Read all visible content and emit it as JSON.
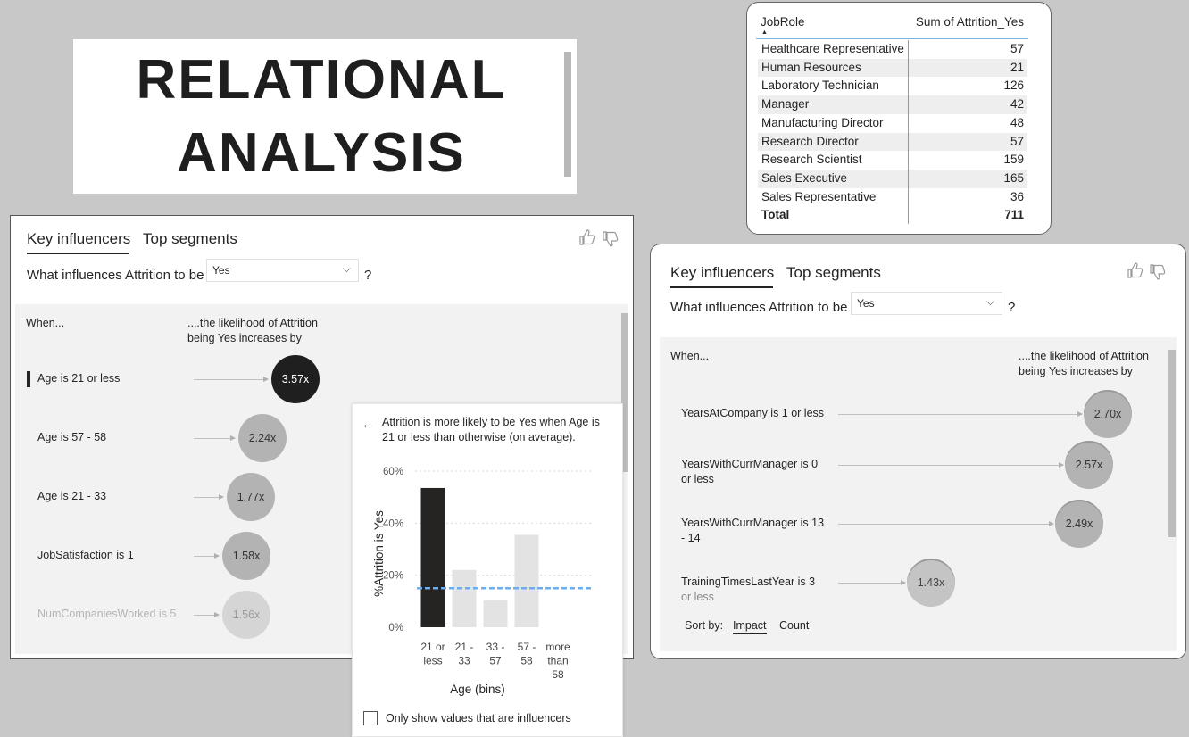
{
  "title": {
    "line1": "RELATIONAL",
    "line2": "ANALYSIS"
  },
  "table": {
    "col_role": "JobRole",
    "col_sum": "Sum of Attrition_Yes",
    "rows": [
      {
        "role": "Healthcare Representative",
        "value": "57"
      },
      {
        "role": "Human Resources",
        "value": "21"
      },
      {
        "role": "Laboratory Technician",
        "value": "126"
      },
      {
        "role": "Manager",
        "value": "42"
      },
      {
        "role": "Manufacturing Director",
        "value": "48"
      },
      {
        "role": "Research Director",
        "value": "57"
      },
      {
        "role": "Research Scientist",
        "value": "159"
      },
      {
        "role": "Sales Executive",
        "value": "165"
      },
      {
        "role": "Sales Representative",
        "value": "36"
      }
    ],
    "total_label": "Total",
    "total_value": "711"
  },
  "left_panel": {
    "tab_key": "Key influencers",
    "tab_top": "Top segments",
    "question": "What influences Attrition to be",
    "dropdown_value": "Yes",
    "qmark": "?",
    "when": "When...",
    "likelihood_1": "....the likelihood of Attrition",
    "likelihood_2": "being Yes increases by",
    "influencers": [
      {
        "label": "Age is 21 or less",
        "value": "3.57x"
      },
      {
        "label": "Age is 57 - 58",
        "value": "2.24x"
      },
      {
        "label": "Age is 21 - 33",
        "value": "1.77x"
      },
      {
        "label": "JobSatisfaction is 1",
        "value": "1.58x"
      },
      {
        "label": "NumCompaniesWorked is 5",
        "value": "1.56x"
      }
    ],
    "detail": {
      "back_icon": "←",
      "text_1": "Attrition is more likely to be Yes when Age is",
      "text_2": "21 or less than otherwise (on average).",
      "checkbox_label": "Only show values that are influencers"
    }
  },
  "chart_data": {
    "type": "bar",
    "categories": [
      "21 or less",
      "21 - 33",
      "33 - 57",
      "57 - 58",
      "more than 58"
    ],
    "category_lines": [
      [
        "21 or",
        "less"
      ],
      [
        "21 -",
        "33"
      ],
      [
        "33 -",
        "57"
      ],
      [
        "57 -",
        "58"
      ],
      [
        "more",
        "than",
        "58"
      ]
    ],
    "values": [
      53.5,
      22,
      10.5,
      35.5,
      0
    ],
    "highlight_index": 0,
    "average_line": 15,
    "ylim": [
      0,
      60
    ],
    "yticks": [
      "0%",
      "20%",
      "40%",
      "60%"
    ],
    "ytick_values": [
      0,
      20,
      40,
      60
    ],
    "ylabel": "%Attrition is Yes",
    "xlabel": "Age (bins)",
    "colors": {
      "highlight": "#252423",
      "bar": "#e3e3e3",
      "avg": "#6aaeef",
      "grid": "#d9d9d9"
    }
  },
  "right_panel": {
    "tab_key": "Key influencers",
    "tab_top": "Top segments",
    "question": "What influences Attrition to be",
    "dropdown_value": "Yes",
    "qmark": "?",
    "when": "When...",
    "likelihood_1": "....the likelihood of Attrition",
    "likelihood_2": "being Yes increases by",
    "influencers": [
      {
        "label_1": "YearsAtCompany is 1 or less",
        "label_2": "",
        "value": "2.70x"
      },
      {
        "label_1": "YearsWithCurrManager is 0",
        "label_2": "or less",
        "value": "2.57x"
      },
      {
        "label_1": "YearsWithCurrManager is 13",
        "label_2": "- 14",
        "value": "2.49x"
      },
      {
        "label_1": "TrainingTimesLastYear is 3",
        "label_2": "or less",
        "value": "1.43x"
      }
    ],
    "sort_by": "Sort by:",
    "sort_impact": "Impact",
    "sort_count": "Count"
  },
  "icons": {
    "thumbs_up": "thumbs-up-icon",
    "thumbs_down": "thumbs-down-icon",
    "chevron": "chevron-down-icon",
    "back": "back-arrow-icon"
  }
}
